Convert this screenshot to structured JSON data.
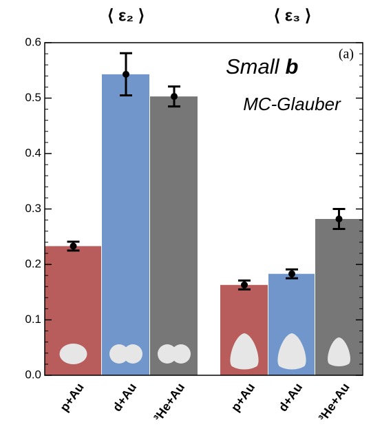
{
  "chart_data": {
    "type": "bar",
    "group_labels": [
      "⟨ ε₂ ⟩",
      "⟨ ε₃ ⟩"
    ],
    "annotations": {
      "panel": "(a)",
      "title": [
        "Small",
        "b"
      ],
      "model": "MC-Glauber"
    },
    "categories": [
      "p+Au",
      "d+Au",
      "³He+Au",
      "p+Au",
      "d+Au",
      "³He+Au"
    ],
    "colors": [
      "#b85c5c",
      "#7096cc",
      "#777777",
      "#b85c5c",
      "#7096cc",
      "#777777"
    ],
    "values": [
      0.233,
      0.543,
      0.503,
      0.163,
      0.183,
      0.282
    ],
    "errors": [
      0.008,
      0.038,
      0.018,
      0.008,
      0.008,
      0.018
    ],
    "ylim": [
      0,
      0.6
    ],
    "yticks": [
      {
        "value": 0,
        "label": "0.0"
      },
      0.1,
      0.2,
      0.3,
      0.4,
      0.5,
      0.6
    ]
  }
}
